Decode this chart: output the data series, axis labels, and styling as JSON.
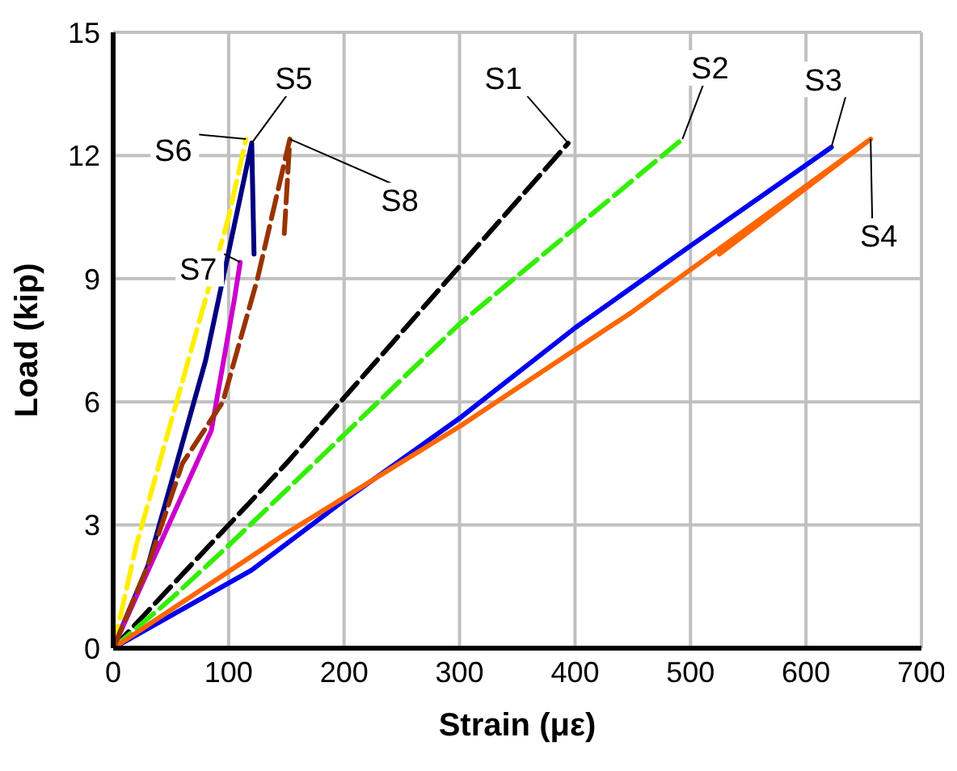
{
  "chart_data": {
    "type": "line",
    "xlabel": "Strain (με)",
    "ylabel": "Load (kip)",
    "xlim": [
      0,
      700
    ],
    "xticks": [
      0,
      100,
      200,
      300,
      400,
      500,
      600,
      700
    ],
    "ylim": [
      0,
      15
    ],
    "yticks": [
      0,
      3,
      6,
      9,
      12,
      15
    ],
    "grid": true,
    "marker": "none",
    "series": [
      {
        "name": "S1",
        "color": "#000000",
        "line_style": "dashed",
        "x": [
          0,
          50,
          150,
          300,
          394
        ],
        "values": [
          0,
          1.5,
          4.5,
          9.3,
          12.3
        ]
      },
      {
        "name": "S2",
        "color": "#33ee00",
        "line_style": "dashed",
        "x": [
          0,
          50,
          100,
          200,
          300,
          493
        ],
        "values": [
          0,
          1.2,
          2.5,
          5.2,
          7.9,
          12.4
        ]
      },
      {
        "name": "S3",
        "color": "#0000ee",
        "line_style": "solid",
        "x": [
          0,
          120,
          200,
          300,
          400,
          500,
          622
        ],
        "values": [
          0,
          1.9,
          3.6,
          5.6,
          7.8,
          9.8,
          12.2
        ]
      },
      {
        "name": "S4",
        "color": "#ff6600",
        "line_style": "solid",
        "x": [
          0,
          150,
          300,
          450,
          656,
          525
        ],
        "values": [
          0,
          2.8,
          5.4,
          8.2,
          12.4,
          9.6
        ]
      },
      {
        "name": "S5",
        "color": "#000080",
        "line_style": "solid",
        "x": [
          0,
          30,
          80,
          120,
          122
        ],
        "values": [
          0,
          2,
          7,
          12.3,
          9.6
        ]
      },
      {
        "name": "S6",
        "color": "#ffee00",
        "line_style": "dashed",
        "x": [
          0,
          20,
          60,
          100,
          115
        ],
        "values": [
          0,
          2.5,
          6.5,
          10.5,
          12.4
        ]
      },
      {
        "name": "S7",
        "color": "#cc00cc",
        "line_style": "solid",
        "x": [
          0,
          40,
          85,
          105,
          110
        ],
        "values": [
          0,
          2.5,
          5.3,
          8.5,
          9.4
        ]
      },
      {
        "name": "S8",
        "color": "#993300",
        "line_style": "dashed",
        "x": [
          0,
          30,
          60,
          95,
          125,
          153,
          148
        ],
        "values": [
          0,
          2,
          4.5,
          6,
          9,
          12.4,
          10
        ]
      }
    ]
  }
}
